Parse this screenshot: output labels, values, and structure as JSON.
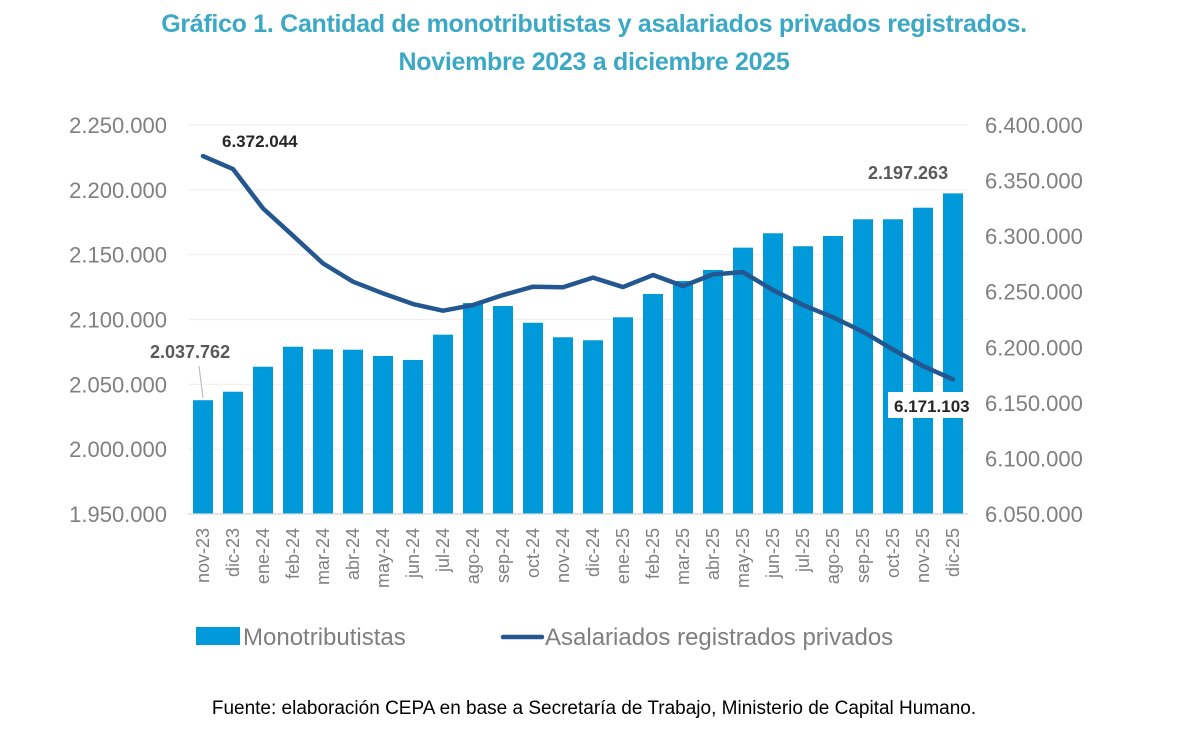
{
  "chart_data": {
    "type": "bar+line",
    "title": "Gráfico 1. Cantidad de monotributistas y asalariados privados registrados.",
    "subtitle": "Noviembre 2023 a diciembre 2025",
    "categories": [
      "nov-23",
      "dic-23",
      "ene-24",
      "feb-24",
      "mar-24",
      "abr-24",
      "may-24",
      "jun-24",
      "jul-24",
      "ago-24",
      "sep-24",
      "oct-24",
      "nov-24",
      "dic-24",
      "ene-25",
      "feb-25",
      "mar-25",
      "abr-25",
      "may-25",
      "jun-25",
      "jul-25",
      "ago-25",
      "sep-25",
      "oct-25",
      "nov-25",
      "dic-25"
    ],
    "series": [
      {
        "name": "Monotributistas",
        "type": "bar",
        "axis": "left",
        "color": "#009ADA",
        "values": [
          2037762,
          2044300,
          2063600,
          2079000,
          2077000,
          2076700,
          2071900,
          2068800,
          2088300,
          2112700,
          2110400,
          2097500,
          2086300,
          2084000,
          2101700,
          2119700,
          2129700,
          2138200,
          2155400,
          2166500,
          2156500,
          2164400,
          2177300,
          2177300,
          2186200,
          2197263
        ]
      },
      {
        "name": "Asalariados registrados privados",
        "type": "line",
        "axis": "right",
        "color": "#24578F",
        "values": [
          6372044,
          6360400,
          6325000,
          6300400,
          6275500,
          6259000,
          6248500,
          6238900,
          6232900,
          6238000,
          6247000,
          6254500,
          6254000,
          6262700,
          6254200,
          6265000,
          6255100,
          6265600,
          6267600,
          6251400,
          6238000,
          6227000,
          6214000,
          6198000,
          6183100,
          6171103
        ]
      }
    ],
    "left_axis": {
      "ylim": [
        1950000,
        2250000
      ],
      "ticks": [
        1950000,
        2000000,
        2050000,
        2100000,
        2150000,
        2200000,
        2250000
      ],
      "tick_labels": [
        "1.950.000",
        "2.000.000",
        "2.050.000",
        "2.100.000",
        "2.150.000",
        "2.200.000",
        "2.250.000"
      ]
    },
    "right_axis": {
      "ylim": [
        6050000,
        6400000
      ],
      "ticks": [
        6050000,
        6100000,
        6150000,
        6200000,
        6250000,
        6300000,
        6350000,
        6400000
      ],
      "tick_labels": [
        "6.050.000",
        "6.100.000",
        "6.150.000",
        "6.200.000",
        "6.250.000",
        "6.300.000",
        "6.350.000",
        "6.400.000"
      ]
    },
    "annotations": [
      {
        "series": "Monotributistas",
        "category": "nov-23",
        "text": "2.037.762"
      },
      {
        "series": "Monotributistas",
        "category": "dic-25",
        "text": "2.197.263"
      },
      {
        "series": "Asalariados registrados privados",
        "category": "nov-23",
        "text": "6.372.044"
      },
      {
        "series": "Asalariados registrados privados",
        "category": "dic-25",
        "text": "6.171.103"
      }
    ],
    "legend": [
      "Monotributistas",
      "Asalariados registrados privados"
    ],
    "legend_position": "bottom",
    "grid": true,
    "xlabel": "",
    "ylabel": ""
  },
  "header": {
    "title_line1": "Gráfico 1. Cantidad de monotributistas y asalariados privados registrados.",
    "title_line2": "Noviembre 2023 a diciembre 2025"
  },
  "footer": {
    "source": "Fuente: elaboración CEPA en base a Secretaría de Trabajo, Ministerio de Capital Humano."
  }
}
